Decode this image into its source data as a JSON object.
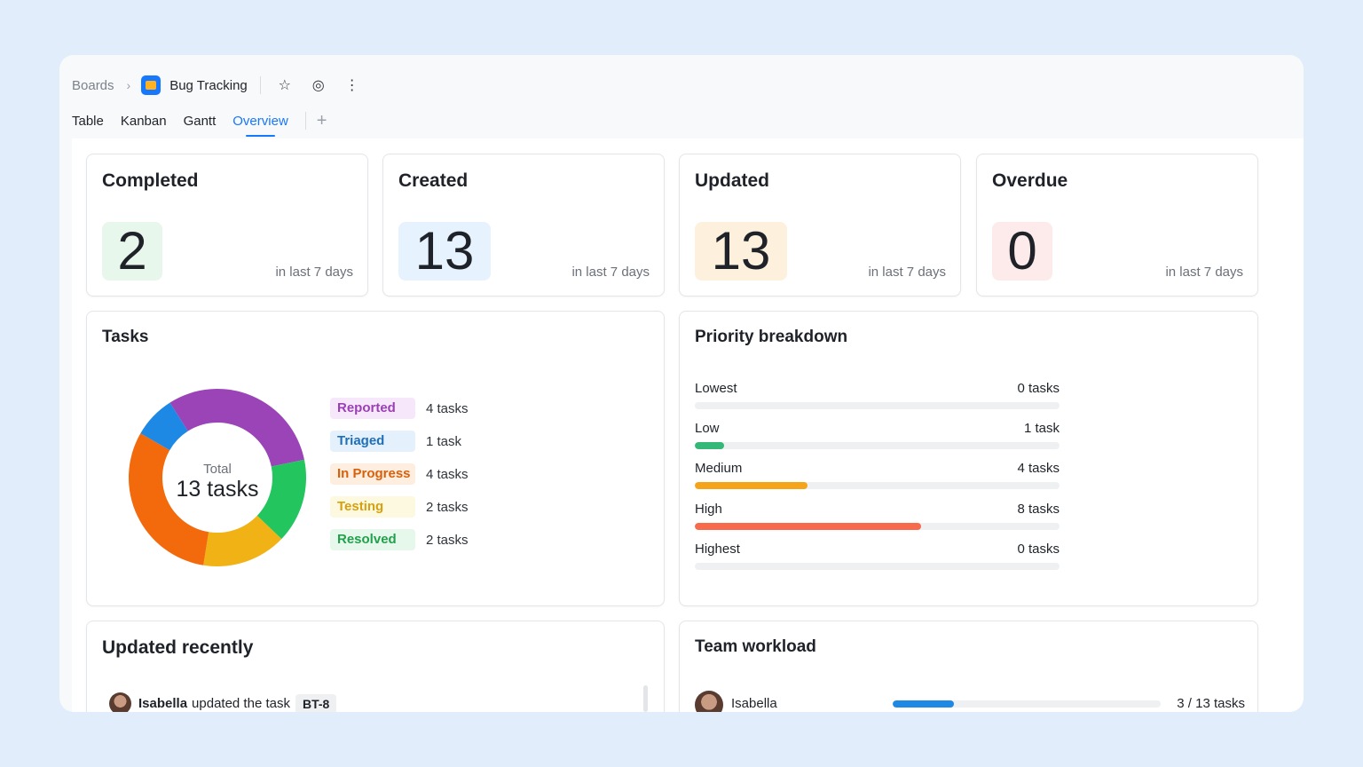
{
  "breadcrumb": {
    "root": "Boards",
    "board": "Bug Tracking"
  },
  "tabs": [
    {
      "label": "Table"
    },
    {
      "label": "Kanban"
    },
    {
      "label": "Gantt"
    },
    {
      "label": "Overview"
    }
  ],
  "active_tab": "Overview",
  "stats": [
    {
      "title": "Completed",
      "value": "2",
      "sub": "in last 7 days",
      "bg": "#e8f7ec"
    },
    {
      "title": "Created",
      "value": "13",
      "sub": "in last 7 days",
      "bg": "#e6f2fd"
    },
    {
      "title": "Updated",
      "value": "13",
      "sub": "in last 7 days",
      "bg": "#fdf0dc"
    },
    {
      "title": "Overdue",
      "value": "0",
      "sub": "in last 7 days",
      "bg": "#fdeaea"
    }
  ],
  "tasks": {
    "title": "Tasks",
    "center_label": "Total",
    "center_value": "13 tasks",
    "legend": [
      {
        "label": "Reported",
        "count": "4 tasks",
        "text_color": "#9b3fb5",
        "bg": "#f6e8fa"
      },
      {
        "label": "Triaged",
        "count": "1 task",
        "text_color": "#1f6fb8",
        "bg": "#e4f1fc"
      },
      {
        "label": "In Progress",
        "count": "4 tasks",
        "text_color": "#d9600b",
        "bg": "#fdeee0"
      },
      {
        "label": "Testing",
        "count": "2 tasks",
        "text_color": "#d6a10d",
        "bg": "#fdf8e0"
      },
      {
        "label": "Resolved",
        "count": "2 tasks",
        "text_color": "#22a04b",
        "bg": "#e6f7ec"
      }
    ]
  },
  "chart_data": {
    "type": "pie",
    "title": "Tasks",
    "categories": [
      "Reported",
      "Triaged",
      "In Progress",
      "Testing",
      "Resolved"
    ],
    "values": [
      4,
      1,
      4,
      2,
      2
    ],
    "colors": [
      "#9b44b8",
      "#1e88e5",
      "#f26a0c",
      "#f0b215",
      "#22c55e"
    ],
    "total": 13
  },
  "priority": {
    "title": "Priority breakdown",
    "rows": [
      {
        "label": "Lowest",
        "count": "0 tasks",
        "fraction": 0,
        "color": "#cccccc"
      },
      {
        "label": "Low",
        "count": "1 task",
        "fraction": 0.08,
        "color": "#33b87a"
      },
      {
        "label": "Medium",
        "count": "4 tasks",
        "fraction": 0.31,
        "color": "#f5a419"
      },
      {
        "label": "High",
        "count": "8 tasks",
        "fraction": 0.62,
        "color": "#f76a4c"
      },
      {
        "label": "Highest",
        "count": "0 tasks",
        "fraction": 0,
        "color": "#cccccc"
      }
    ]
  },
  "updated_recently": {
    "title": "Updated recently",
    "entries": [
      {
        "user": "Isabella",
        "action": "updated the task",
        "task": "BT-8"
      }
    ]
  },
  "team_workload": {
    "title": "Team workload",
    "members": [
      {
        "name": "Isabella",
        "count": "3 / 13 tasks",
        "fraction": 0.23,
        "color": "#1e88e5"
      }
    ]
  }
}
